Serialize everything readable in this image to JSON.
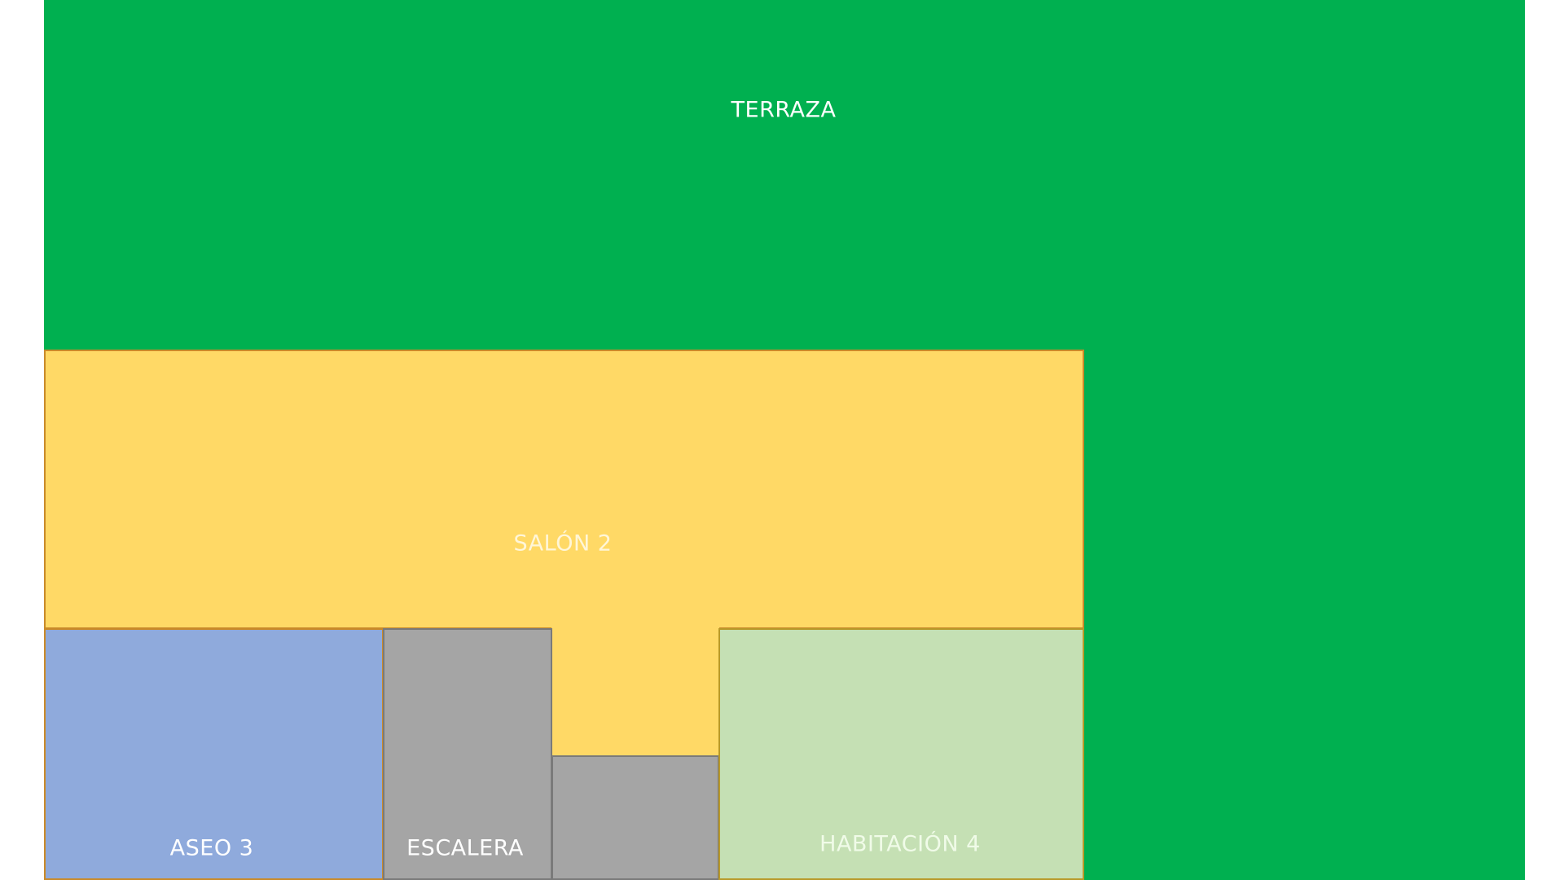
{
  "rooms": {
    "terraza": {
      "label": "TERRAZA",
      "color": "#00b050"
    },
    "salon": {
      "label": "SALÓN 2",
      "color": "#ffd966"
    },
    "aseo": {
      "label": "ASEO 3",
      "color": "#8faadc"
    },
    "escalera": {
      "label": "ESCALERA",
      "color": "#a5a5a5"
    },
    "gray_small": {
      "label": "",
      "color": "#a5a5a5"
    },
    "habitacion": {
      "label": "HABITACIÓN 4",
      "color": "#c5e0b4"
    }
  }
}
